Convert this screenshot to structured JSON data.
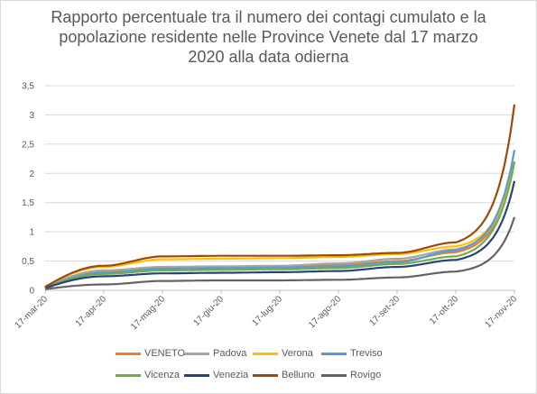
{
  "chart_data": {
    "type": "line",
    "title_lines": [
      "Rapporto percentuale tra il numero dei contagi cumulato e la",
      "popolazione residente nelle Province Venete dal 17 marzo",
      "2020 alla data odierna"
    ],
    "xlabel": "",
    "ylabel": "",
    "ylim": [
      0,
      3.5
    ],
    "y_ticks": [
      0,
      0.5,
      1,
      1.5,
      2,
      2.5,
      3,
      3.5
    ],
    "y_tick_labels": [
      "0",
      "0,5",
      "1",
      "1,5",
      "2",
      "2,5",
      "3",
      "3,5"
    ],
    "categories": [
      "17-mar-20",
      "17-apr-20",
      "17-mag-20",
      "17-giu-20",
      "17-lug-20",
      "17-ago-20",
      "17-set-20",
      "17-ott-20",
      "17-nov-20"
    ],
    "grid": true,
    "legend_position": "bottom",
    "series": [
      {
        "name": "VENETO",
        "color": "#ED7D31",
        "values": [
          0.05,
          0.32,
          0.39,
          0.4,
          0.41,
          0.43,
          0.5,
          0.65,
          2.2
        ]
      },
      {
        "name": "Padova",
        "color": "#A5A5A5",
        "values": [
          0.05,
          0.34,
          0.4,
          0.41,
          0.42,
          0.46,
          0.54,
          0.7,
          2.2
        ]
      },
      {
        "name": "Verona",
        "color": "#FFC000",
        "values": [
          0.06,
          0.4,
          0.53,
          0.54,
          0.55,
          0.57,
          0.62,
          0.75,
          2.2
        ]
      },
      {
        "name": "Treviso",
        "color": "#5B9BD5",
        "values": [
          0.04,
          0.3,
          0.37,
          0.38,
          0.39,
          0.41,
          0.48,
          0.68,
          2.4
        ]
      },
      {
        "name": "Vicenza",
        "color": "#70AD47",
        "values": [
          0.04,
          0.28,
          0.34,
          0.35,
          0.36,
          0.38,
          0.45,
          0.58,
          2.2
        ]
      },
      {
        "name": "Venezia",
        "color": "#264478",
        "values": [
          0.04,
          0.24,
          0.29,
          0.3,
          0.31,
          0.33,
          0.4,
          0.52,
          1.87
        ]
      },
      {
        "name": "Belluno",
        "color": "#9E480E",
        "values": [
          0.06,
          0.42,
          0.58,
          0.59,
          0.59,
          0.6,
          0.64,
          0.82,
          3.18
        ]
      },
      {
        "name": "Rovigo",
        "color": "#636363",
        "values": [
          0.02,
          0.1,
          0.16,
          0.17,
          0.17,
          0.18,
          0.22,
          0.32,
          1.25
        ]
      }
    ]
  }
}
